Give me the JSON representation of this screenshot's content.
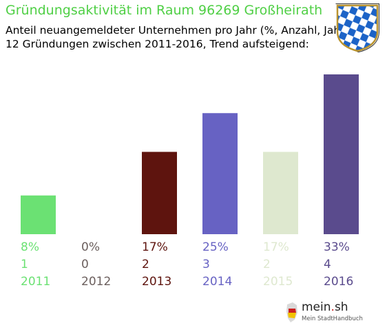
{
  "title": "Gründungsaktivität im Raum 96269 Großheirath",
  "subtitle1": "Anteil neuangemeldeter Unternehmen pro Jahr (%, Anzahl, Jahr)",
  "subtitle2": "12 Gründungen zwischen 2011-2016, Trend aufsteigend:",
  "logo": {
    "brand": "mein",
    "brand_suffix": "sh",
    "dot": ".",
    "tagline": "Mein StadtHandbuch"
  },
  "crest_icon": "bavarian-lozenge-crest-icon",
  "chart_data": {
    "type": "bar",
    "title": "Gründungsaktivität im Raum 96269 Großheirath",
    "categories": [
      "2011",
      "2012",
      "2013",
      "2014",
      "2015",
      "2016"
    ],
    "series": [
      {
        "values": [
          8,
          0,
          17,
          25,
          17,
          33
        ]
      }
    ],
    "counts": [
      1,
      0,
      2,
      3,
      2,
      4
    ],
    "percent_labels": [
      "8%",
      "0%",
      "17%",
      "25%",
      "17%",
      "33%"
    ],
    "count_labels": [
      "1",
      "0",
      "2",
      "3",
      "2",
      "4"
    ],
    "colors": [
      "#6be173",
      "#6b5f5d",
      "#5e140e",
      "#6762c3",
      "#dee8cf",
      "#5a4b8d"
    ],
    "ylim": [
      0,
      33
    ],
    "grid": false,
    "legend": "none",
    "xlabel": "",
    "ylabel": ""
  }
}
